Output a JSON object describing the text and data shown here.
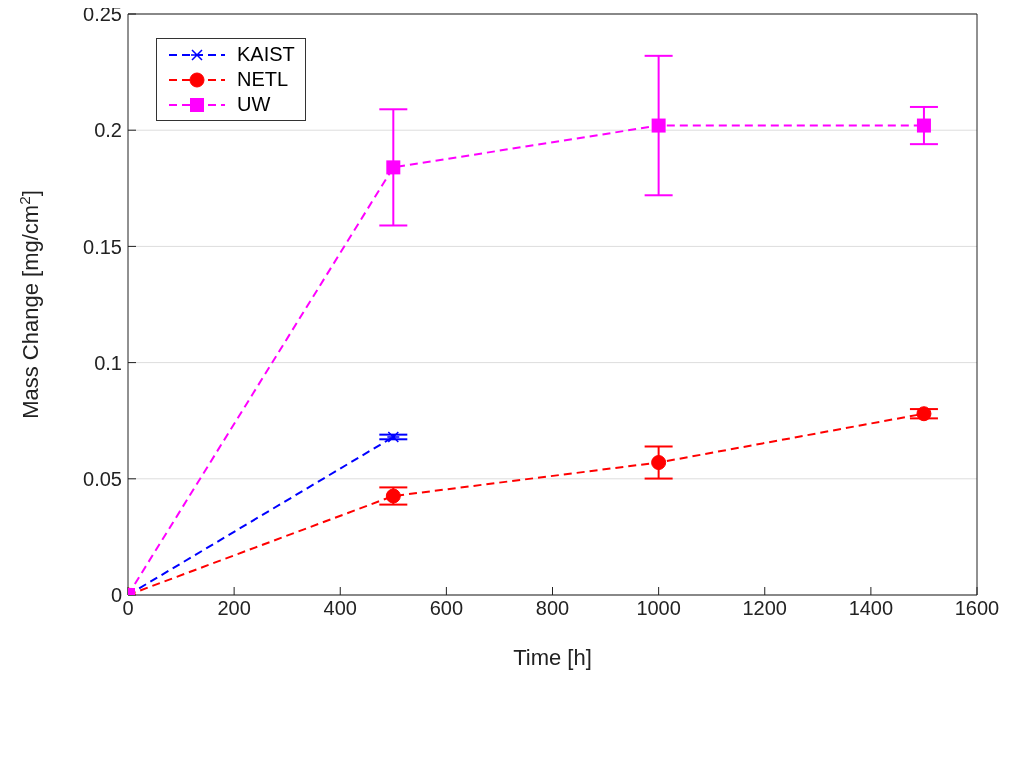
{
  "chart_data": {
    "type": "line",
    "xlabel": "Time [h]",
    "ylabel": "Mass Change [mg/cm$^{2}$]",
    "xlim": [
      0,
      1600
    ],
    "xticks": [
      0,
      200,
      400,
      600,
      800,
      1000,
      1200,
      1400,
      1600
    ],
    "ylim": [
      0,
      0.25
    ],
    "yticks": [
      0,
      0.05,
      0.1,
      0.15,
      0.2,
      0.25
    ],
    "grid": "y",
    "legend": "top left",
    "line_style": "dashed",
    "series": [
      {
        "name": "KAIST",
        "color": "#0000ff",
        "marker": "cross",
        "x": [
          0,
          500
        ],
        "values": [
          0,
          0.068
        ],
        "errors": [
          0,
          0.001
        ]
      },
      {
        "name": "NETL",
        "color": "#ff0000",
        "marker": "circle",
        "x": [
          0,
          500,
          1000,
          1500
        ],
        "values": [
          0,
          0.0426,
          0.057,
          0.078
        ],
        "errors": [
          0,
          0.0037,
          0.0069,
          0.002
        ]
      },
      {
        "name": "UW",
        "color": "#ff00ff",
        "marker": "square",
        "x": [
          0,
          500,
          1000,
          1500
        ],
        "values": [
          0,
          0.184,
          0.202,
          0.202
        ],
        "errors": [
          0,
          0.025,
          0.03,
          0.008
        ]
      }
    ]
  }
}
